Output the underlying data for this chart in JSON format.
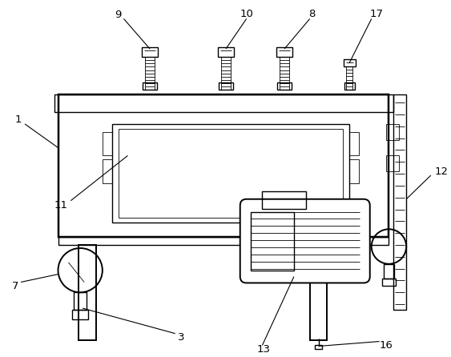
{
  "bg_color": "#ffffff",
  "line_color": "#000000",
  "label_color": "#000000",
  "fig_w": 5.63,
  "fig_h": 4.46,
  "dpi": 100
}
